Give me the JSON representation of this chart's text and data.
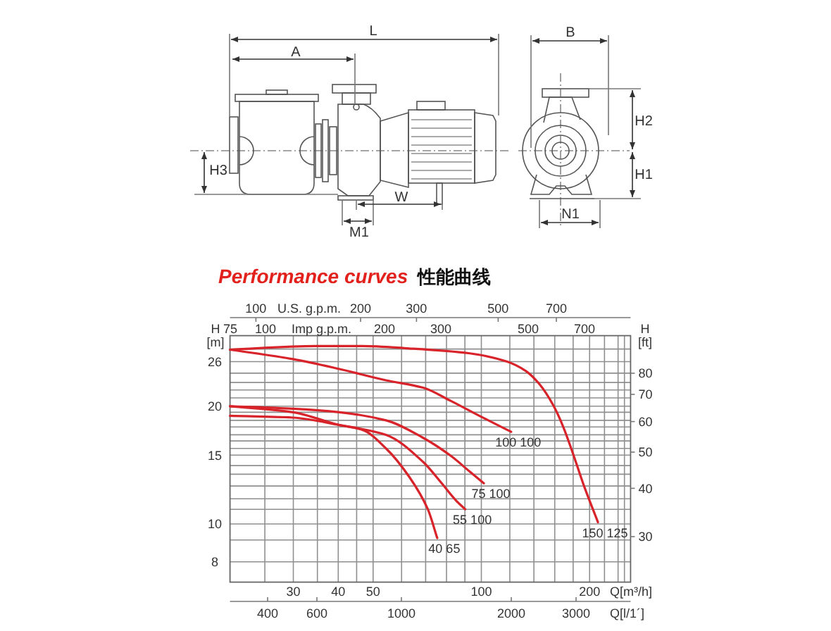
{
  "chart_data": {
    "type": "line",
    "title": "Performance curves",
    "subtitle": "性能曲线",
    "xlabel": "Q[m³/h]",
    "x2label": "U.S. g.p.m.",
    "ylabel": "H [m]",
    "y2label": "H [ft]",
    "log": "xy",
    "grid": true,
    "xlim": [
      20,
      260
    ],
    "xticks": [
      {
        "value": 25,
        "label": null
      },
      30,
      {
        "value": 35,
        "label": null
      },
      40,
      {
        "value": 45,
        "label": null
      },
      50,
      {
        "value": 60,
        "label": null
      },
      {
        "value": 70,
        "label": null
      },
      {
        "value": 80,
        "label": null
      },
      {
        "value": 90,
        "label": null
      },
      100,
      {
        "value": 120,
        "label": null
      },
      {
        "value": 140,
        "label": null
      },
      {
        "value": 160,
        "label": null
      },
      {
        "value": 180,
        "label": null
      },
      200,
      {
        "value": 220,
        "label": null
      },
      {
        "value": 240,
        "label": null
      },
      {
        "value": 250,
        "label": null
      }
    ],
    "ylim": [
      7.1,
      30.3
    ],
    "yticks": [
      8,
      {
        "value": 9.1,
        "label": null
      },
      10,
      {
        "value": 10.9,
        "label": null
      },
      {
        "value": 11.6,
        "label": null
      },
      {
        "value": 12.5,
        "label": null
      },
      {
        "value": 13.4,
        "label": null
      },
      {
        "value": 14.1,
        "label": null
      },
      15,
      {
        "value": 15.6,
        "label": null
      },
      {
        "value": 16.3,
        "label": null
      },
      {
        "value": 16.9,
        "label": null
      },
      {
        "value": 17.7,
        "label": null
      },
      {
        "value": 18.4,
        "label": null
      },
      {
        "value": 19.3,
        "label": null
      },
      20,
      {
        "value": 21,
        "label": null
      },
      {
        "value": 22,
        "label": null
      },
      {
        "value": 23,
        "label": null
      },
      {
        "value": 24.3,
        "label": null
      },
      26,
      {
        "value": 28,
        "label": null
      }
    ],
    "series": [
      {
        "name": "150 125",
        "color": "#d8232a",
        "x": [
          20,
          34.6,
          46.7,
          63,
          92.9,
          118,
          133,
          145.5,
          159,
          169,
          179.5,
          193,
          211
        ],
        "values": [
          27.9,
          28.5,
          28.5,
          28.1,
          27.3,
          26.0,
          24.6,
          22.7,
          20.0,
          17.7,
          15.2,
          12.5,
          10.1
        ]
      },
      {
        "name": "100 100",
        "color": "#d8232a",
        "x": [
          20,
          29.9,
          40.3,
          54.3,
          68.9,
          82.5,
          98.7,
          121
        ],
        "values": [
          27.9,
          26.4,
          24.9,
          23.3,
          22.3,
          20.6,
          18.9,
          17.2
        ]
      },
      {
        "name": "75 100",
        "color": "#d8232a",
        "x": [
          20,
          29.9,
          40.3,
          54.3,
          68.9,
          82.5,
          92.9,
          101.6
        ],
        "values": [
          20.0,
          19.7,
          19.3,
          18.4,
          16.6,
          14.9,
          13.6,
          12.7
        ]
      },
      {
        "name": "55 100",
        "color": "#d8232a",
        "x": [
          20,
          29.9,
          40.3,
          54.3,
          68.9,
          77.6,
          84.9,
          90.2
        ],
        "values": [
          18.9,
          18.7,
          17.9,
          16.9,
          14.4,
          12.7,
          11.5,
          10.9
        ]
      },
      {
        "name": "40 65",
        "color": "#d8232a",
        "x": [
          20,
          29.9,
          40.3,
          46.7,
          54.3,
          63,
          71,
          75.4
        ],
        "values": [
          20.0,
          19.3,
          17.9,
          17.4,
          15.6,
          13.2,
          10.9,
          9.2
        ]
      }
    ],
    "annotations": [
      "L",
      "A",
      "H3",
      "W",
      "M1",
      "B",
      "H2",
      "H1",
      "N1",
      "100",
      "200",
      "300",
      "500",
      "700",
      "Imp g.p.m.",
      "75",
      "100",
      "200",
      "300",
      "500",
      "700",
      "Q[l/1´]",
      "400",
      "600",
      "1000",
      "2000",
      "3000",
      "30",
      "40",
      "50",
      "60",
      "70",
      "80"
    ]
  }
}
